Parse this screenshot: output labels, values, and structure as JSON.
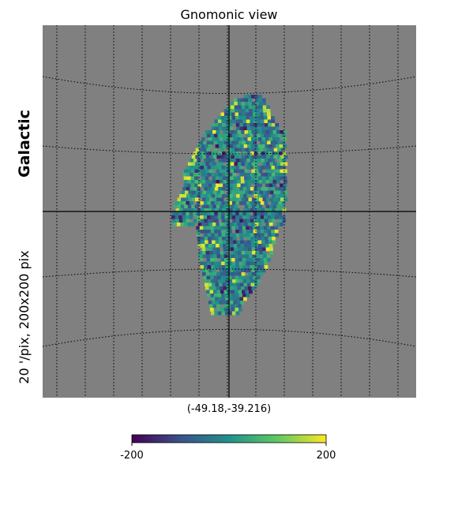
{
  "chart_data": {
    "type": "heatmap",
    "title": "Gnomonic view",
    "coordinate_system": "Galactic",
    "resolution_label": "20 '/pix,   200x200 pix",
    "center_label": "(-49.18,-39.216)",
    "background_color": "#808080",
    "colormap": "viridis",
    "colormap_colors": [
      "#440154",
      "#3b528b",
      "#21918c",
      "#5ec962",
      "#fde725"
    ],
    "colorbar": {
      "min": -200,
      "max": 200,
      "min_label": "-200",
      "max_label": "200"
    },
    "grid": true,
    "grid_style": "dotted",
    "axes_cross": true,
    "value_range": [
      -200,
      200
    ]
  }
}
